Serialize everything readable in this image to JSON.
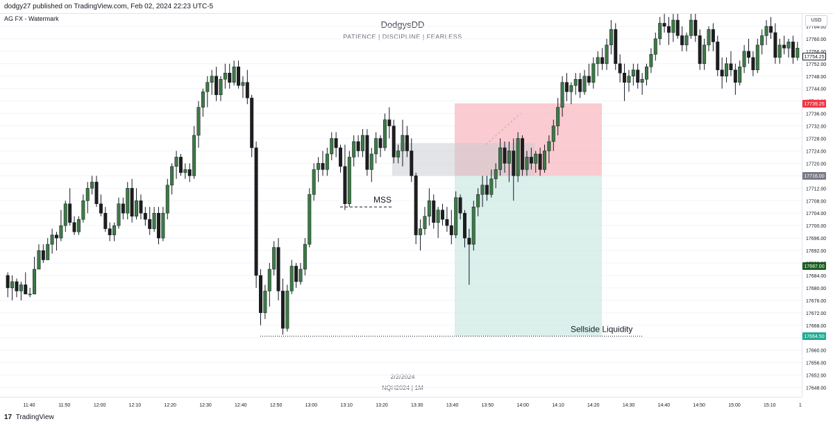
{
  "header": {
    "text": "dodgy27 published on TradingView.com, Feb 02, 2024 22:23 UTC-5"
  },
  "symbol_label": "AG FX - Watermark",
  "watermark": {
    "title": "DodgysDD",
    "subtitle": "PATIENCE  |  DISCIPLINE  |  FEARLESS",
    "date": "2/2/2024",
    "symbol": "NQH2024 | 1M"
  },
  "currency": "USD",
  "annotations": {
    "mss": "MSS",
    "sellside": "Sellside Liquidity"
  },
  "price_ticks": [
    "17764.00",
    "17760.00",
    "17756.00",
    "17752.00",
    "17748.00",
    "17744.00",
    "17740.00",
    "17736.00",
    "17732.00",
    "17728.00",
    "17724.00",
    "17720.00",
    "17716.00",
    "17712.00",
    "17708.00",
    "17704.00",
    "17700.00",
    "17696.00",
    "17692.00",
    "17688.00",
    "17684.00",
    "17680.00",
    "17676.00",
    "17672.00",
    "17668.00",
    "17664.00",
    "17660.00",
    "17656.00",
    "17652.00",
    "17648.00"
  ],
  "price_tags": [
    {
      "label": "17754.25",
      "price": 17754.25,
      "bg": "#ffffff",
      "fg": "#131722",
      "border": "#131722"
    },
    {
      "label": "17739.25",
      "price": 17739.25,
      "bg": "#f23645",
      "fg": "#ffffff",
      "border": "#f23645"
    },
    {
      "label": "17716.00",
      "price": 17716.0,
      "bg": "#787b86",
      "fg": "#ffffff",
      "border": "#787b86"
    },
    {
      "label": "17687.00",
      "price": 17687.0,
      "bg": "#1b5e20",
      "fg": "#ffffff",
      "border": "#1b5e20"
    },
    {
      "label": "17664.50",
      "price": 17664.5,
      "bg": "#22ab94",
      "fg": "#ffffff",
      "border": "#22ab94"
    }
  ],
  "time_ticks": [
    "11:40",
    "11:50",
    "12:00",
    "12:10",
    "12:20",
    "12:30",
    "12:40",
    "12:50",
    "13:00",
    "13:10",
    "13:20",
    "13:30",
    "13:40",
    "13:50",
    "14:00",
    "14:10",
    "14:20",
    "14:30",
    "14:40",
    "14:50",
    "15:00",
    "15:10",
    "15:20"
  ],
  "footer": {
    "logo": "17",
    "brand": "TradingView"
  },
  "colors": {
    "up": "#3d7a45",
    "down": "#1e1e1e",
    "stop_zone": "#f8b9c1",
    "target_zone": "#cfeae4",
    "gap_zone": "#c8c9cf",
    "grid": "#f0f3fa"
  },
  "chart_data": {
    "type": "candlestick",
    "symbol": "NQH2024",
    "interval": "1M",
    "ylim": [
      17645,
      17768
    ],
    "candles": [
      [
        17684,
        17685,
        17677,
        17680
      ],
      [
        17680,
        17684,
        17676,
        17682
      ],
      [
        17682,
        17683,
        17677,
        17679
      ],
      [
        17679,
        17682,
        17676,
        17681
      ],
      [
        17681,
        17685,
        17678,
        17678
      ],
      [
        17678,
        17680,
        17677,
        17678
      ],
      [
        17678,
        17690,
        17678,
        17686
      ],
      [
        17686,
        17694,
        17686,
        17692
      ],
      [
        17692,
        17694,
        17688,
        17689
      ],
      [
        17689,
        17696,
        17689,
        17694
      ],
      [
        17694,
        17699,
        17691,
        17697
      ],
      [
        17697,
        17698,
        17692,
        17696
      ],
      [
        17696,
        17705,
        17695,
        17700
      ],
      [
        17700,
        17708,
        17698,
        17707
      ],
      [
        17707,
        17712,
        17700,
        17701
      ],
      [
        17701,
        17703,
        17697,
        17698
      ],
      [
        17698,
        17703,
        17697,
        17702
      ],
      [
        17702,
        17710,
        17701,
        17708
      ],
      [
        17708,
        17714,
        17704,
        17712
      ],
      [
        17712,
        17716,
        17710,
        17714
      ],
      [
        17714,
        17716,
        17706,
        17707
      ],
      [
        17707,
        17710,
        17703,
        17704
      ],
      [
        17704,
        17706,
        17698,
        17699
      ],
      [
        17699,
        17701,
        17695,
        17697
      ],
      [
        17697,
        17701,
        17695,
        17700
      ],
      [
        17700,
        17709,
        17699,
        17707
      ],
      [
        17707,
        17709,
        17702,
        17704
      ],
      [
        17704,
        17714,
        17702,
        17712
      ],
      [
        17712,
        17715,
        17701,
        17703
      ],
      [
        17703,
        17712,
        17702,
        17708
      ],
      [
        17708,
        17710,
        17702,
        17704
      ],
      [
        17704,
        17706,
        17700,
        17702
      ],
      [
        17702,
        17706,
        17697,
        17699
      ],
      [
        17699,
        17706,
        17698,
        17704
      ],
      [
        17704,
        17706,
        17694,
        17696
      ],
      [
        17696,
        17706,
        17695,
        17704
      ],
      [
        17704,
        17715,
        17702,
        17713
      ],
      [
        17713,
        17720,
        17710,
        17719
      ],
      [
        17719,
        17724,
        17715,
        17722
      ],
      [
        17722,
        17723,
        17716,
        17717
      ],
      [
        17717,
        17720,
        17715,
        17718
      ],
      [
        17718,
        17720,
        17714,
        17716
      ],
      [
        17716,
        17732,
        17715,
        17729
      ],
      [
        17729,
        17740,
        17725,
        17738
      ],
      [
        17738,
        17744,
        17735,
        17743
      ],
      [
        17743,
        17748,
        17738,
        17746
      ],
      [
        17746,
        17750,
        17742,
        17748
      ],
      [
        17748,
        17751,
        17740,
        17742
      ],
      [
        17742,
        17748,
        17740,
        17747
      ],
      [
        17747,
        17752,
        17744,
        17749
      ],
      [
        17749,
        17752,
        17744,
        17746
      ],
      [
        17746,
        17753,
        17745,
        17751
      ],
      [
        17751,
        17753,
        17744,
        17745
      ],
      [
        17745,
        17748,
        17741,
        17746
      ],
      [
        17746,
        17750,
        17739,
        17741
      ],
      [
        17741,
        17742,
        17722,
        17725
      ],
      [
        17725,
        17727,
        17680,
        17684
      ],
      [
        17684,
        17686,
        17668,
        17672
      ],
      [
        17672,
        17681,
        17670,
        17679
      ],
      [
        17679,
        17688,
        17674,
        17686
      ],
      [
        17686,
        17695,
        17684,
        17693
      ],
      [
        17693,
        17696,
        17676,
        17679
      ],
      [
        17679,
        17683,
        17665,
        17667
      ],
      [
        17667,
        17681,
        17666,
        17679
      ],
      [
        17679,
        17689,
        17678,
        17687
      ],
      [
        17687,
        17688,
        17680,
        17682
      ],
      [
        17682,
        17688,
        17681,
        17686
      ],
      [
        17686,
        17696,
        17684,
        17694
      ],
      [
        17694,
        17712,
        17693,
        17710
      ],
      [
        17710,
        17720,
        17708,
        17718
      ],
      [
        17718,
        17722,
        17714,
        17720
      ],
      [
        17720,
        17724,
        17716,
        17718
      ],
      [
        17718,
        17725,
        17716,
        17723
      ],
      [
        17723,
        17730,
        17721,
        17728
      ],
      [
        17728,
        17730,
        17722,
        17725
      ],
      [
        17725,
        17726,
        17717,
        17719
      ],
      [
        17719,
        17726,
        17705,
        17707
      ],
      [
        17707,
        17724,
        17706,
        17722
      ],
      [
        17722,
        17729,
        17719,
        17727
      ],
      [
        17727,
        17729,
        17722,
        17724
      ],
      [
        17724,
        17731,
        17722,
        17729
      ],
      [
        17729,
        17731,
        17716,
        17718
      ],
      [
        17718,
        17725,
        17714,
        17723
      ],
      [
        17723,
        17730,
        17720,
        17728
      ],
      [
        17728,
        17729,
        17722,
        17725
      ],
      [
        17725,
        17736,
        17724,
        17734
      ],
      [
        17734,
        17738,
        17728,
        17732
      ],
      [
        17732,
        17734,
        17720,
        17722
      ],
      [
        17722,
        17726,
        17720,
        17724
      ],
      [
        17724,
        17734,
        17719,
        17729
      ],
      [
        17729,
        17732,
        17722,
        17724
      ],
      [
        17724,
        17728,
        17714,
        17716
      ],
      [
        17716,
        17717,
        17694,
        17697
      ],
      [
        17697,
        17702,
        17692,
        17699
      ],
      [
        17699,
        17706,
        17697,
        17703
      ],
      [
        17703,
        17712,
        17700,
        17708
      ],
      [
        17708,
        17710,
        17699,
        17701
      ],
      [
        17701,
        17706,
        17696,
        17705
      ],
      [
        17705,
        17707,
        17700,
        17702
      ],
      [
        17702,
        17706,
        17698,
        17700
      ],
      [
        17700,
        17705,
        17694,
        17697
      ],
      [
        17697,
        17711,
        17696,
        17709
      ],
      [
        17709,
        17710,
        17702,
        17704
      ],
      [
        17704,
        17705,
        17693,
        17696
      ],
      [
        17696,
        17699,
        17681,
        17694
      ],
      [
        17694,
        17708,
        17692,
        17706
      ],
      [
        17706,
        17712,
        17703,
        17710
      ],
      [
        17710,
        17716,
        17706,
        17713
      ],
      [
        17713,
        17716,
        17708,
        17710
      ],
      [
        17710,
        17718,
        17709,
        17715
      ],
      [
        17715,
        17720,
        17712,
        17718
      ],
      [
        17718,
        17728,
        17716,
        17725
      ],
      [
        17725,
        17727,
        17717,
        17720
      ],
      [
        17720,
        17727,
        17714,
        17724
      ],
      [
        17724,
        17728,
        17708,
        17716
      ],
      [
        17716,
        17730,
        17714,
        17728
      ],
      [
        17728,
        17729,
        17716,
        17718
      ],
      [
        17718,
        17724,
        17716,
        17722
      ],
      [
        17722,
        17725,
        17718,
        17720
      ],
      [
        17720,
        17724,
        17717,
        17723
      ],
      [
        17723,
        17725,
        17716,
        17718
      ],
      [
        17718,
        17726,
        17717,
        17724
      ],
      [
        17724,
        17729,
        17720,
        17727
      ],
      [
        17727,
        17734,
        17724,
        17732
      ],
      [
        17732,
        17741,
        17729,
        17738
      ],
      [
        17738,
        17748,
        17735,
        17746
      ],
      [
        17746,
        17749,
        17740,
        17743
      ],
      [
        17743,
        17746,
        17739,
        17745
      ],
      [
        17745,
        17749,
        17742,
        17747
      ],
      [
        17747,
        17749,
        17741,
        17743
      ],
      [
        17743,
        17750,
        17742,
        17748
      ],
      [
        17748,
        17752,
        17745,
        17746
      ],
      [
        17746,
        17754,
        17744,
        17752
      ],
      [
        17752,
        17756,
        17748,
        17754
      ],
      [
        17754,
        17757,
        17750,
        17752
      ],
      [
        17752,
        17760,
        17750,
        17758
      ],
      [
        17758,
        17766,
        17755,
        17763
      ],
      [
        17763,
        17765,
        17750,
        17752
      ],
      [
        17752,
        17755,
        17746,
        17749
      ],
      [
        17749,
        17752,
        17740,
        17746
      ],
      [
        17746,
        17750,
        17743,
        17748
      ],
      [
        17748,
        17752,
        17745,
        17750
      ],
      [
        17750,
        17752,
        17744,
        17746
      ],
      [
        17746,
        17749,
        17742,
        17747
      ],
      [
        17747,
        17752,
        17745,
        17751
      ],
      [
        17751,
        17757,
        17749,
        17755
      ],
      [
        17755,
        17762,
        17753,
        17760
      ],
      [
        17760,
        17767,
        17758,
        17765
      ],
      [
        17765,
        17768,
        17762,
        17764
      ],
      [
        17764,
        17767,
        17758,
        17762
      ],
      [
        17762,
        17768,
        17759,
        17766
      ],
      [
        17766,
        17768,
        17760,
        17761
      ],
      [
        17761,
        17764,
        17756,
        17758
      ],
      [
        17758,
        17762,
        17756,
        17761
      ],
      [
        17761,
        17768,
        17760,
        17766
      ],
      [
        17766,
        17768,
        17759,
        17761
      ],
      [
        17761,
        17763,
        17750,
        17752
      ],
      [
        17752,
        17760,
        17750,
        17758
      ],
      [
        17758,
        17764,
        17756,
        17763
      ],
      [
        17763,
        17765,
        17756,
        17759
      ],
      [
        17759,
        17761,
        17748,
        17750
      ],
      [
        17750,
        17754,
        17744,
        17748
      ],
      [
        17748,
        17754,
        17746,
        17752
      ],
      [
        17752,
        17756,
        17748,
        17750
      ],
      [
        17750,
        17752,
        17742,
        17746
      ],
      [
        17746,
        17753,
        17745,
        17751
      ],
      [
        17751,
        17758,
        17749,
        17756
      ],
      [
        17756,
        17760,
        17752,
        17754
      ],
      [
        17754,
        17756,
        17748,
        17750
      ],
      [
        17750,
        17760,
        17749,
        17758
      ],
      [
        17758,
        17763,
        17755,
        17761
      ],
      [
        17761,
        17766,
        17758,
        17764
      ],
      [
        17764,
        17767,
        17760,
        17762
      ],
      [
        17762,
        17765,
        17752,
        17754
      ],
      [
        17754,
        17760,
        17752,
        17758
      ],
      [
        17758,
        17761,
        17755,
        17757
      ],
      [
        17757,
        17760,
        17754,
        17759
      ],
      [
        17759,
        17761,
        17752,
        17754
      ],
      [
        17754,
        17759,
        17753,
        17757
      ]
    ],
    "levels": [
      {
        "label": "17739.25",
        "price": 17739.25
      },
      {
        "label": "17716.00",
        "price": 17716.0
      },
      {
        "label": "17687.00",
        "price": 17687.0
      },
      {
        "label": "17664.50",
        "price": 17664.5
      }
    ]
  }
}
